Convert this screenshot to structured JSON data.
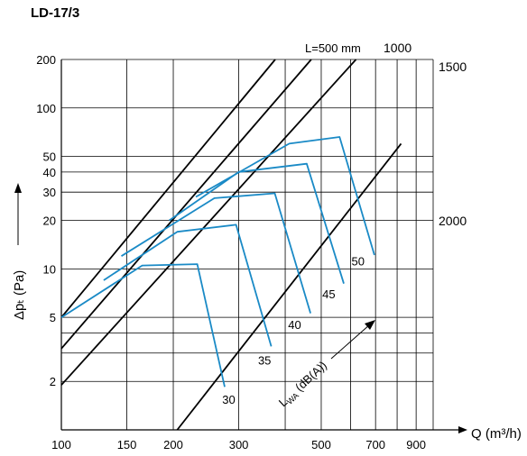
{
  "title": "LD-17/3",
  "chart_data": {
    "type": "line",
    "title": "LD-17/3",
    "xlabel_q": "Q",
    "xlabel_unit": "(m³/h)",
    "ylabel": "Δpₜ  (Pa)",
    "x_scale": "log",
    "y_scale": "log",
    "xlim": [
      100,
      1000
    ],
    "ylim": [
      1,
      200
    ],
    "x_ticks": [
      100,
      150,
      200,
      300,
      500,
      700,
      900
    ],
    "y_ticks": [
      2,
      5,
      10,
      20,
      30,
      40,
      50,
      100,
      200
    ],
    "grid": true,
    "colors": {
      "length_lines": "#000000",
      "noise_lines": "#1a8ac6",
      "grid": "#000000"
    },
    "length_series": [
      {
        "name": "L=500 mm",
        "points": [
          [
            100,
            5
          ],
          [
            376,
            200
          ]
        ]
      },
      {
        "name": "1000",
        "points": [
          [
            100,
            3.2
          ],
          [
            470,
            200
          ]
        ]
      },
      {
        "name": "1500",
        "points": [
          [
            100,
            1.9
          ],
          [
            620,
            200
          ]
        ]
      },
      {
        "name": "2000",
        "points": [
          [
            205,
            1
          ],
          [
            820,
            60
          ]
        ]
      }
    ],
    "noise_label": "L_WA (dB(A))",
    "noise_series": [
      {
        "name": "30",
        "label_at": [
          282,
          1.45
        ],
        "points": [
          [
            100,
            5
          ],
          [
            165,
            10.5
          ],
          [
            232,
            10.7
          ],
          [
            275,
            1.85
          ]
        ]
      },
      {
        "name": "35",
        "label_at": [
          352,
          2.55
        ],
        "points": [
          [
            130,
            8.5
          ],
          [
            205,
            17
          ],
          [
            295,
            18.8
          ],
          [
            367,
            3.3
          ]
        ]
      },
      {
        "name": "40",
        "label_at": [
          424,
          4.25
        ],
        "points": [
          [
            145,
            12
          ],
          [
            258,
            27.5
          ],
          [
            375,
            29.5
          ],
          [
            468,
            5.3
          ]
        ]
      },
      {
        "name": "45",
        "label_at": [
          524,
          6.55
        ],
        "points": [
          [
            195,
            20
          ],
          [
            300,
            40
          ],
          [
            457,
            45
          ],
          [
            575,
            8.1
          ]
        ]
      },
      {
        "name": "50",
        "label_at": [
          628,
          10.5
        ],
        "points": [
          [
            230,
            28
          ],
          [
            410,
            60
          ],
          [
            560,
            66
          ],
          [
            695,
            12.2
          ]
        ]
      }
    ]
  }
}
